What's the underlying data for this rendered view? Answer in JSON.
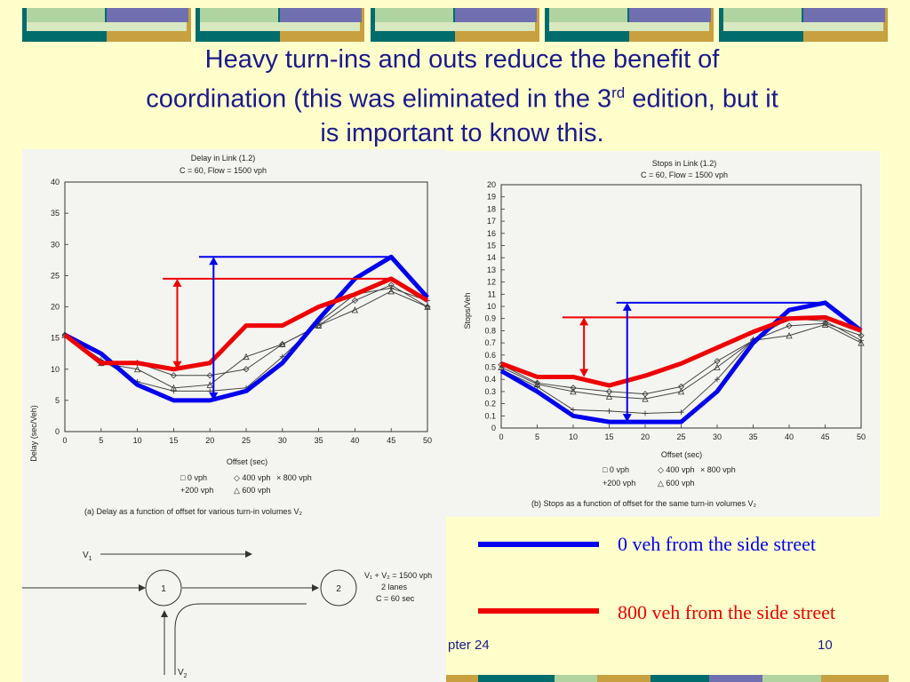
{
  "slide": {
    "title_line1": "Heavy turn-ins and outs reduce the benefit of",
    "title_line2a": "coordination (this was eliminated in the 3",
    "title_sup": "rd",
    "title_line2b": " edition, but it",
    "title_line3": "is important to know this.",
    "footer_chapter": "pter 24",
    "page_number": "10",
    "colors": {
      "background": "#ffffcc",
      "title": "#1a1a8c",
      "blue": "#0000ee",
      "red": "#ee0000",
      "teal": "#006c6c",
      "gold": "#c8a040",
      "lavender": "#7070b0"
    }
  },
  "legend": {
    "blue_label": "0 veh from the side street",
    "red_label": "800 veh from the side street"
  },
  "diagram": {
    "v1": "V",
    "v1_sub": "1",
    "v2": "V",
    "v2_sub": "2",
    "node1": "1",
    "node2": "2",
    "note_line1": "V₁ + V₂ = 1500 vph",
    "note_line2": "2 lanes",
    "note_line3": "C = 60 sec"
  },
  "chart_data": [
    {
      "type": "line",
      "title": "Delay in Link (1.2)",
      "subtitle": "C = 60, Flow = 1500 vph",
      "xlabel": "Offset (sec)",
      "ylabel": "Delay (sec/Veh)",
      "caption": "(a) Delay as a function of offset for various turn-in volumes V₂",
      "xlim": [
        0,
        50
      ],
      "ylim": [
        0,
        40
      ],
      "xticks": [
        0,
        5,
        10,
        15,
        20,
        25,
        30,
        35,
        40,
        45,
        50
      ],
      "yticks": [
        0,
        5,
        10,
        15,
        20,
        25,
        30,
        35,
        40
      ],
      "legend_entries": [
        "□ 0 vph",
        "◇ 400 vph",
        "× 800 vph",
        "+200 vph",
        "△ 600 vph"
      ],
      "x": [
        0,
        5,
        10,
        15,
        20,
        25,
        30,
        35,
        40,
        45,
        50
      ],
      "series": [
        {
          "name": "0 vph",
          "values": [
            15.5,
            12.5,
            7.5,
            5,
            5,
            6.5,
            11,
            18,
            24.5,
            28,
            21.5
          ]
        },
        {
          "name": "400 vph",
          "values": [
            15.5,
            11,
            11,
            9,
            9,
            10,
            14,
            17,
            21,
            23.5,
            20
          ]
        },
        {
          "name": "800 vph",
          "values": [
            15.5,
            11,
            11,
            10,
            11,
            17,
            17,
            20,
            22,
            24.5,
            21
          ]
        },
        {
          "name": "+200 vph",
          "values": [
            15.5,
            11.5,
            8,
            6.5,
            6.5,
            7,
            12,
            17.5,
            22,
            23,
            21
          ]
        },
        {
          "name": "600 vph",
          "values": [
            15.5,
            11,
            10,
            7,
            7.5,
            12,
            14,
            17,
            19.5,
            22.5,
            20
          ]
        }
      ],
      "highlights": {
        "blue_line_value": 28,
        "blue_arrow": [
          5,
          28
        ],
        "blue_arrow_x": 20.5,
        "red_line_value": 24.5,
        "red_arrow": [
          10,
          24.5
        ],
        "red_arrow_x": 15.5
      }
    },
    {
      "type": "line",
      "title": "Stops in Link (1.2)",
      "subtitle": "C = 60, Flow = 1500 vph",
      "xlabel": "Offset (sec)",
      "ylabel": "Stops/Veh",
      "caption": "(b) Stops as a function of offset for the same turn-in volumes V₂",
      "xlim": [
        0,
        50
      ],
      "ylim": [
        0,
        2.0
      ],
      "xticks": [
        0,
        5,
        10,
        15,
        20,
        25,
        30,
        35,
        40,
        45,
        50
      ],
      "yticks_labels": [
        "0",
        "0.1",
        "0.2",
        "0.3",
        "0.4",
        "0.5",
        "0.6",
        "0.7",
        "0.8",
        "0.9",
        "10",
        "11",
        "12",
        "13",
        "14",
        "15",
        "16",
        "17",
        "18",
        "19",
        "20"
      ],
      "legend_entries": [
        "□ 0 vph",
        "◇ 400 vph",
        "× 800 vph",
        "+200 vph",
        "△ 600 vph"
      ],
      "x": [
        0,
        5,
        10,
        15,
        20,
        25,
        30,
        35,
        40,
        45,
        50
      ],
      "series": [
        {
          "name": "0 vph",
          "values": [
            0.47,
            0.3,
            0.1,
            0.05,
            0.05,
            0.05,
            0.3,
            0.7,
            0.97,
            1.03,
            0.8
          ]
        },
        {
          "name": "400 vph",
          "values": [
            0.52,
            0.37,
            0.33,
            0.3,
            0.28,
            0.34,
            0.55,
            0.72,
            0.84,
            0.86,
            0.76
          ]
        },
        {
          "name": "800 vph",
          "values": [
            0.53,
            0.42,
            0.42,
            0.35,
            0.43,
            0.53,
            0.66,
            0.79,
            0.9,
            0.91,
            0.8
          ]
        },
        {
          "name": "+200 vph",
          "values": [
            0.48,
            0.34,
            0.15,
            0.14,
            0.12,
            0.13,
            0.4,
            0.73,
            0.9,
            0.88,
            0.72
          ]
        },
        {
          "name": "600 vph",
          "values": [
            0.5,
            0.36,
            0.3,
            0.26,
            0.24,
            0.3,
            0.5,
            0.72,
            0.76,
            0.85,
            0.7
          ]
        }
      ],
      "highlights": {
        "blue_line_value": 1.03,
        "blue_arrow": [
          0.05,
          1.03
        ],
        "blue_arrow_x": 17.5,
        "red_line_value": 0.91,
        "red_arrow": [
          0.42,
          0.91
        ],
        "red_arrow_x": 11.5
      }
    }
  ]
}
